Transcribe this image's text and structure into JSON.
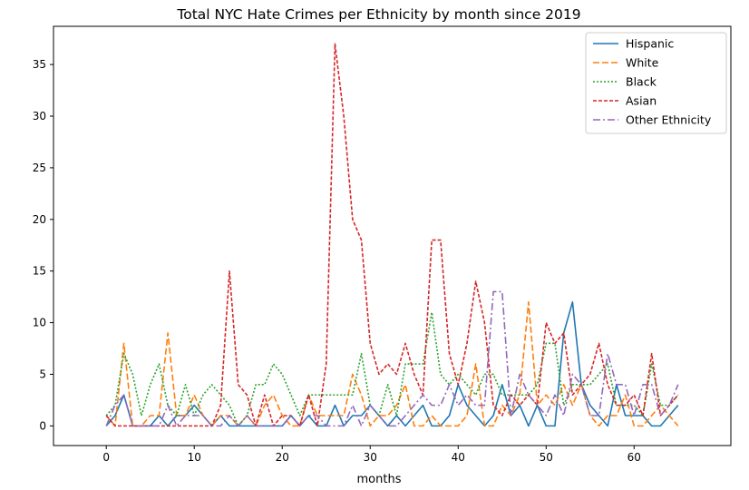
{
  "chart_data": {
    "type": "line",
    "title": "Total NYC Hate Crimes per Ethnicity by month since 2019",
    "xlabel": "months",
    "ylabel": "",
    "xlim": [
      -6,
      71
    ],
    "ylim": [
      -1.9,
      38.7
    ],
    "xticks": [
      0,
      10,
      20,
      30,
      40,
      50,
      60
    ],
    "yticks": [
      0,
      5,
      10,
      15,
      20,
      25,
      30,
      35
    ],
    "grid": false,
    "legend_position": "upper right",
    "x": [
      0,
      1,
      2,
      3,
      4,
      5,
      6,
      7,
      8,
      9,
      10,
      11,
      12,
      13,
      14,
      15,
      16,
      17,
      18,
      19,
      20,
      21,
      22,
      23,
      24,
      25,
      26,
      27,
      28,
      29,
      30,
      31,
      32,
      33,
      34,
      35,
      36,
      37,
      38,
      39,
      40,
      41,
      42,
      43,
      44,
      45,
      46,
      47,
      48,
      49,
      50,
      51,
      52,
      53,
      54,
      55,
      56,
      57,
      58,
      59,
      60,
      61,
      62,
      63,
      64,
      65
    ],
    "series": [
      {
        "name": "Hispanic",
        "color": "#1f77b4",
        "dash": "solid",
        "values": [
          0,
          1,
          3,
          0,
          0,
          0,
          1,
          0,
          1,
          1,
          2,
          1,
          0,
          1,
          0,
          0,
          0,
          0,
          0,
          0,
          0,
          1,
          0,
          1,
          0,
          0,
          2,
          0,
          1,
          1,
          2,
          1,
          0,
          1,
          0,
          1,
          2,
          0,
          0,
          1,
          4,
          2,
          1,
          0,
          1,
          4,
          1,
          2,
          0,
          2,
          0,
          0,
          9,
          12,
          4,
          2,
          1,
          0,
          4,
          1,
          1,
          1,
          0,
          0,
          1,
          2
        ]
      },
      {
        "name": "White",
        "color": "#ff7f0e",
        "dash": "dashed",
        "values": [
          1,
          0,
          8,
          0,
          0,
          1,
          1,
          9,
          1,
          1,
          3,
          1,
          0,
          1,
          1,
          0,
          1,
          0,
          2,
          3,
          1,
          0,
          0,
          3,
          1,
          1,
          1,
          1,
          5,
          3,
          0,
          1,
          1,
          2,
          4,
          0,
          0,
          1,
          0,
          0,
          0,
          1,
          6,
          0,
          0,
          2,
          1,
          3,
          12,
          2,
          3,
          2,
          4,
          2,
          4,
          1,
          0,
          1,
          1,
          3,
          0,
          0,
          1,
          2,
          1,
          0
        ]
      },
      {
        "name": "Black",
        "color": "#2ca02c",
        "dash": "dotted",
        "values": [
          1,
          2,
          7,
          5,
          1,
          4,
          6,
          2,
          1,
          4,
          1,
          3,
          4,
          3,
          2,
          0,
          1,
          4,
          4,
          6,
          5,
          3,
          1,
          3,
          3,
          3,
          3,
          3,
          3,
          7,
          2,
          1,
          4,
          1,
          6,
          6,
          6,
          11,
          5,
          4,
          5,
          4,
          3,
          5,
          5,
          3,
          3,
          3,
          3,
          4,
          8,
          8,
          2,
          4,
          4,
          4,
          5,
          6,
          2,
          2,
          2,
          1,
          6,
          2,
          2,
          3
        ]
      },
      {
        "name": "Asian",
        "color": "#d62728",
        "dash": "densedash",
        "values": [
          1,
          0,
          0,
          0,
          0,
          0,
          0,
          0,
          0,
          0,
          0,
          0,
          0,
          2,
          15,
          4,
          3,
          0,
          3,
          0,
          1,
          1,
          0,
          3,
          0,
          6,
          37,
          30,
          20,
          18,
          8,
          5,
          6,
          5,
          8,
          5,
          3,
          18,
          18,
          7,
          4,
          8,
          14,
          10,
          2,
          1,
          3,
          2,
          3,
          2,
          10,
          8,
          9,
          3,
          4,
          5,
          8,
          4,
          2,
          2,
          3,
          1,
          7,
          1,
          2,
          3
        ]
      },
      {
        "name": "Other Ethnicity",
        "color": "#9467bd",
        "dash": "dashdot",
        "values": [
          0,
          2,
          3,
          0,
          0,
          0,
          0,
          2,
          0,
          1,
          1,
          1,
          0,
          0,
          1,
          0,
          1,
          0,
          0,
          0,
          0,
          1,
          0,
          1,
          1,
          0,
          0,
          0,
          2,
          0,
          2,
          1,
          0,
          0,
          1,
          2,
          3,
          2,
          2,
          4,
          2,
          3,
          2,
          2,
          13,
          13,
          1,
          5,
          3,
          2,
          1,
          3,
          1,
          5,
          4,
          1,
          1,
          7,
          4,
          4,
          1,
          4,
          4,
          1,
          2,
          4
        ]
      }
    ]
  }
}
